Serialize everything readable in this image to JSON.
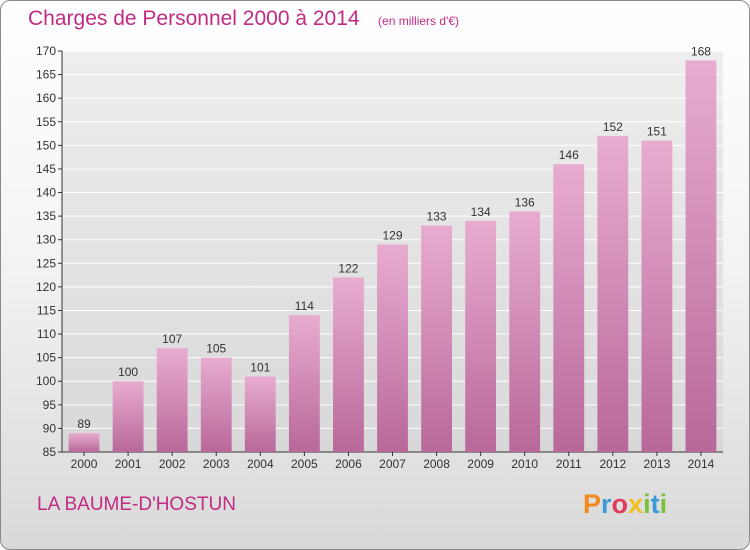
{
  "title": "Charges de Personnel 2000 à 2014",
  "subtitle": "(en milliers d'€)",
  "commune": "LA BAUME-D'HOSTUN",
  "logo": {
    "text": "Proxiti",
    "letters": [
      "P",
      "r",
      "o",
      "x",
      "i",
      "t",
      "i"
    ]
  },
  "colors": {
    "accent": "#c22b83",
    "bar": "#d98cb6",
    "bar_top": "#e9aed0"
  },
  "chart_data": {
    "type": "bar",
    "title": "Charges de Personnel 2000 à 2014",
    "subtitle": "(en milliers d'€)",
    "categories": [
      "2000",
      "2001",
      "2002",
      "2003",
      "2004",
      "2005",
      "2006",
      "2007",
      "2008",
      "2009",
      "2010",
      "2011",
      "2012",
      "2013",
      "2014"
    ],
    "values": [
      89,
      100,
      107,
      105,
      101,
      114,
      122,
      129,
      133,
      134,
      136,
      146,
      152,
      151,
      168
    ],
    "data_labels": [
      "89",
      "100",
      "107",
      "105",
      "101",
      "114",
      "122",
      "129",
      "133",
      "134",
      "136",
      "146",
      "152",
      "151",
      "168"
    ],
    "ylim": [
      85,
      170
    ],
    "yticks": [
      85,
      90,
      95,
      100,
      105,
      110,
      115,
      120,
      125,
      130,
      135,
      140,
      145,
      150,
      155,
      160,
      165,
      170
    ],
    "ytick_labels": [
      "85",
      "90",
      "95",
      "100",
      "105",
      "110",
      "115",
      "120",
      "125",
      "130",
      "135",
      "140",
      "145",
      "150",
      "155",
      "160",
      "165",
      "170"
    ],
    "grid": true,
    "xlabel": "",
    "ylabel": ""
  }
}
